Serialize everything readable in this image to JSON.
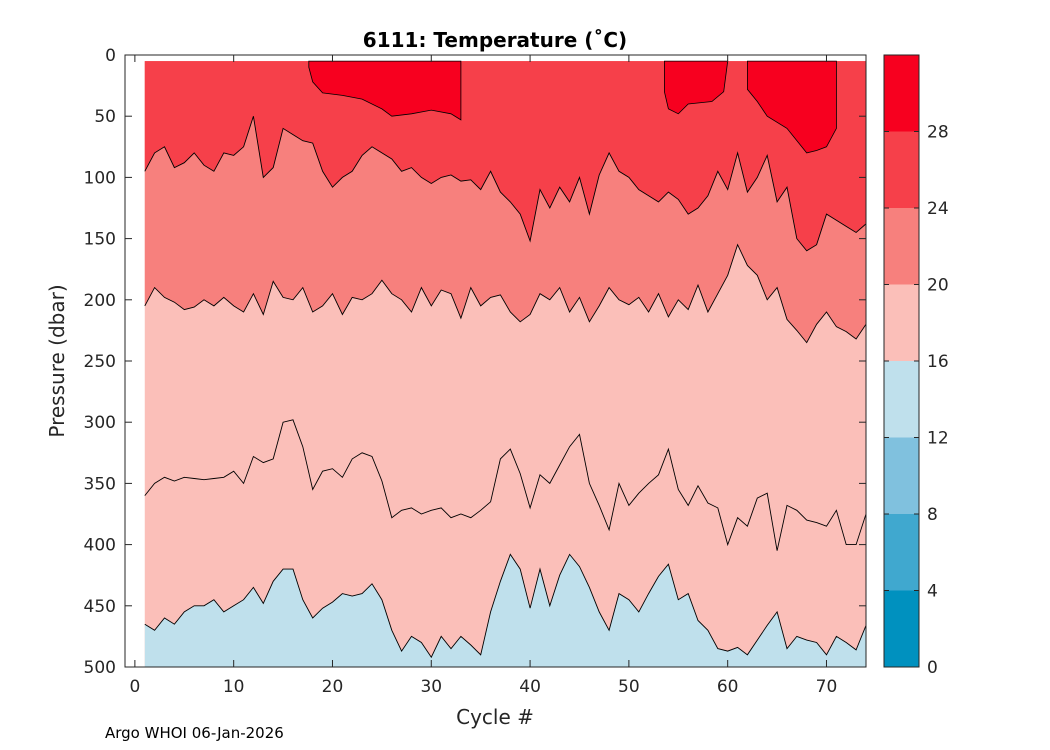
{
  "chart_data": {
    "type": "filled-contour",
    "title": "6111:  Temperature (˚C)",
    "xlabel": "Cycle #",
    "ylabel": "Pressure (dbar)",
    "xlim": [
      -1,
      74
    ],
    "ylim": [
      500,
      0
    ],
    "y_reversed": true,
    "xticks": [
      0,
      10,
      20,
      30,
      40,
      50,
      60,
      70
    ],
    "yticks": [
      0,
      50,
      100,
      150,
      200,
      250,
      300,
      350,
      400,
      450,
      500
    ],
    "colorbar": {
      "range": [
        0,
        32
      ],
      "tick_values": [
        0,
        4,
        8,
        12,
        16,
        20,
        24,
        28
      ],
      "tick_labels": [
        "0",
        "4",
        "8",
        "12",
        "16",
        "20",
        "24",
        "28"
      ],
      "bands": [
        {
          "min": 0,
          "max": 4,
          "color": "#0091bf"
        },
        {
          "min": 4,
          "max": 8,
          "color": "#40a8cf"
        },
        {
          "min": 8,
          "max": 12,
          "color": "#80c1de"
        },
        {
          "min": 12,
          "max": 16,
          "color": "#bfe0ec"
        },
        {
          "min": 16,
          "max": 20,
          "color": "#fbbfb9"
        },
        {
          "min": 20,
          "max": 24,
          "color": "#f7807d"
        },
        {
          "min": 24,
          "max": 28,
          "color": "#f6404a"
        },
        {
          "min": 28,
          "max": 32,
          "color": "#f7001f"
        }
      ]
    },
    "data_x_range": [
      1,
      74
    ],
    "data_top_pressure": 5,
    "warm_patches": [
      {
        "level": 28,
        "points": [
          [
            17.6,
            5
          ],
          [
            33,
            5
          ],
          [
            33,
            53
          ],
          [
            32,
            48
          ],
          [
            30,
            45
          ],
          [
            28,
            48
          ],
          [
            26,
            50
          ],
          [
            25,
            44
          ],
          [
            23,
            36
          ],
          [
            21,
            33
          ],
          [
            19,
            31
          ],
          [
            18,
            22
          ],
          [
            17.6,
            10
          ]
        ]
      },
      {
        "level": 28,
        "points": [
          [
            53.6,
            5
          ],
          [
            60,
            5
          ],
          [
            59.6,
            30
          ],
          [
            58.4,
            38
          ],
          [
            56,
            40
          ],
          [
            55,
            48
          ],
          [
            54,
            44
          ],
          [
            53.6,
            30
          ]
        ]
      },
      {
        "level": 28,
        "points": [
          [
            62,
            5
          ],
          [
            71,
            5
          ],
          [
            71,
            60
          ],
          [
            70,
            75
          ],
          [
            69,
            78
          ],
          [
            68,
            80
          ],
          [
            66,
            60
          ],
          [
            64,
            50
          ],
          [
            63,
            38
          ],
          [
            62,
            28
          ]
        ]
      }
    ],
    "isotherm_24": {
      "level": 24,
      "x": [
        1,
        2,
        3,
        4,
        5,
        6,
        7,
        8,
        9,
        10,
        11,
        12,
        13,
        14,
        15,
        16,
        17,
        18,
        19,
        20,
        21,
        22,
        23,
        24,
        25,
        26,
        27,
        28,
        29,
        30,
        31,
        32,
        33,
        34,
        35,
        36,
        37,
        38,
        39,
        40,
        41,
        42,
        43,
        44,
        45,
        46,
        47,
        48,
        49,
        50,
        51,
        52,
        53,
        54,
        55,
        56,
        57,
        58,
        59,
        60,
        61,
        62,
        63,
        64,
        65,
        66,
        67,
        68,
        69,
        70,
        71,
        72,
        73,
        74
      ],
      "pressure": [
        95,
        80,
        75,
        92,
        88,
        80,
        90,
        95,
        80,
        82,
        75,
        50,
        100,
        92,
        60,
        65,
        70,
        72,
        95,
        108,
        100,
        95,
        82,
        75,
        80,
        85,
        95,
        92,
        100,
        105,
        100,
        98,
        103,
        102,
        110,
        95,
        112,
        120,
        130,
        152,
        110,
        125,
        108,
        120,
        100,
        130,
        98,
        80,
        95,
        100,
        110,
        115,
        120,
        112,
        118,
        130,
        125,
        115,
        95,
        110,
        80,
        112,
        100,
        82,
        120,
        108,
        150,
        160,
        155,
        130,
        135,
        140,
        145,
        138
      ]
    },
    "isotherm_20": {
      "level": 20,
      "x": [
        1,
        2,
        3,
        4,
        5,
        6,
        7,
        8,
        9,
        10,
        11,
        12,
        13,
        14,
        15,
        16,
        17,
        18,
        19,
        20,
        21,
        22,
        23,
        24,
        25,
        26,
        27,
        28,
        29,
        30,
        31,
        32,
        33,
        34,
        35,
        36,
        37,
        38,
        39,
        40,
        41,
        42,
        43,
        44,
        45,
        46,
        47,
        48,
        49,
        50,
        51,
        52,
        53,
        54,
        55,
        56,
        57,
        58,
        59,
        60,
        61,
        62,
        63,
        64,
        65,
        66,
        67,
        68,
        69,
        70,
        71,
        72,
        73,
        74
      ],
      "pressure": [
        205,
        190,
        198,
        202,
        208,
        206,
        200,
        205,
        198,
        205,
        210,
        195,
        212,
        185,
        198,
        200,
        190,
        210,
        205,
        195,
        212,
        198,
        200,
        195,
        184,
        195,
        200,
        210,
        190,
        205,
        192,
        195,
        215,
        190,
        205,
        198,
        196,
        210,
        218,
        212,
        195,
        200,
        190,
        210,
        198,
        218,
        205,
        190,
        200,
        204,
        198,
        210,
        195,
        214,
        200,
        208,
        188,
        210,
        195,
        180,
        155,
        172,
        180,
        200,
        190,
        216,
        225,
        235,
        220,
        210,
        222,
        226,
        232,
        220
      ]
    },
    "isotherm_16_lower": {
      "level": 16,
      "x": [
        1,
        2,
        3,
        4,
        5,
        6,
        7,
        8,
        9,
        10,
        11,
        12,
        13,
        14,
        15,
        16,
        17,
        18,
        19,
        20,
        21,
        22,
        23,
        24,
        25,
        26,
        27,
        28,
        29,
        30,
        31,
        32,
        33,
        34,
        35,
        36,
        37,
        38,
        39,
        40,
        41,
        42,
        43,
        44,
        45,
        46,
        47,
        48,
        49,
        50,
        51,
        52,
        53,
        54,
        55,
        56,
        57,
        58,
        59,
        60,
        61,
        62,
        63,
        64,
        65,
        66,
        67,
        68,
        69,
        70,
        71,
        72,
        73,
        74
      ],
      "pressure": [
        465,
        470,
        460,
        465,
        455,
        450,
        450,
        445,
        455,
        450,
        445,
        435,
        448,
        430,
        420,
        420,
        445,
        460,
        452,
        447,
        440,
        442,
        440,
        432,
        445,
        470,
        487,
        475,
        480,
        492,
        475,
        485,
        475,
        482,
        490,
        455,
        430,
        408,
        420,
        452,
        420,
        450,
        425,
        408,
        418,
        435,
        455,
        470,
        440,
        445,
        455,
        440,
        426,
        416,
        445,
        440,
        462,
        470,
        485,
        487,
        484,
        490,
        478,
        466,
        455,
        485,
        475,
        478,
        480,
        490,
        475,
        480,
        486,
        466
      ]
    },
    "isotherm_16_upper": {
      "level": 16,
      "x": [
        1,
        2,
        3,
        4,
        5,
        6,
        7,
        8,
        9,
        10,
        11,
        12,
        13,
        14,
        15,
        16,
        17,
        18,
        19,
        20,
        21,
        22,
        23,
        24,
        25,
        26,
        27,
        28,
        29,
        30,
        31,
        32,
        33,
        34,
        35,
        36,
        37,
        38,
        39,
        40,
        41,
        42,
        43,
        44,
        45,
        46,
        47,
        48,
        49,
        50,
        51,
        52,
        53,
        54,
        55,
        56,
        57,
        58,
        59,
        60,
        61,
        62,
        63,
        64,
        65,
        66,
        67,
        68,
        69,
        70,
        71,
        72,
        73,
        74
      ],
      "pressure": [
        360,
        350,
        345,
        348,
        345,
        346,
        347,
        346,
        345,
        340,
        350,
        328,
        333,
        330,
        300,
        298,
        320,
        355,
        340,
        338,
        345,
        330,
        325,
        328,
        348,
        378,
        372,
        370,
        375,
        372,
        370,
        378,
        375,
        378,
        372,
        365,
        330,
        322,
        342,
        370,
        343,
        350,
        335,
        320,
        310,
        350,
        368,
        388,
        350,
        368,
        358,
        350,
        343,
        322,
        355,
        368,
        352,
        366,
        370,
        400,
        378,
        385,
        362,
        358,
        405,
        368,
        372,
        380,
        382,
        385,
        372,
        400,
        400,
        375
      ]
    }
  },
  "footer": {
    "text": "Argo WHOI 06-Jan-2026"
  }
}
